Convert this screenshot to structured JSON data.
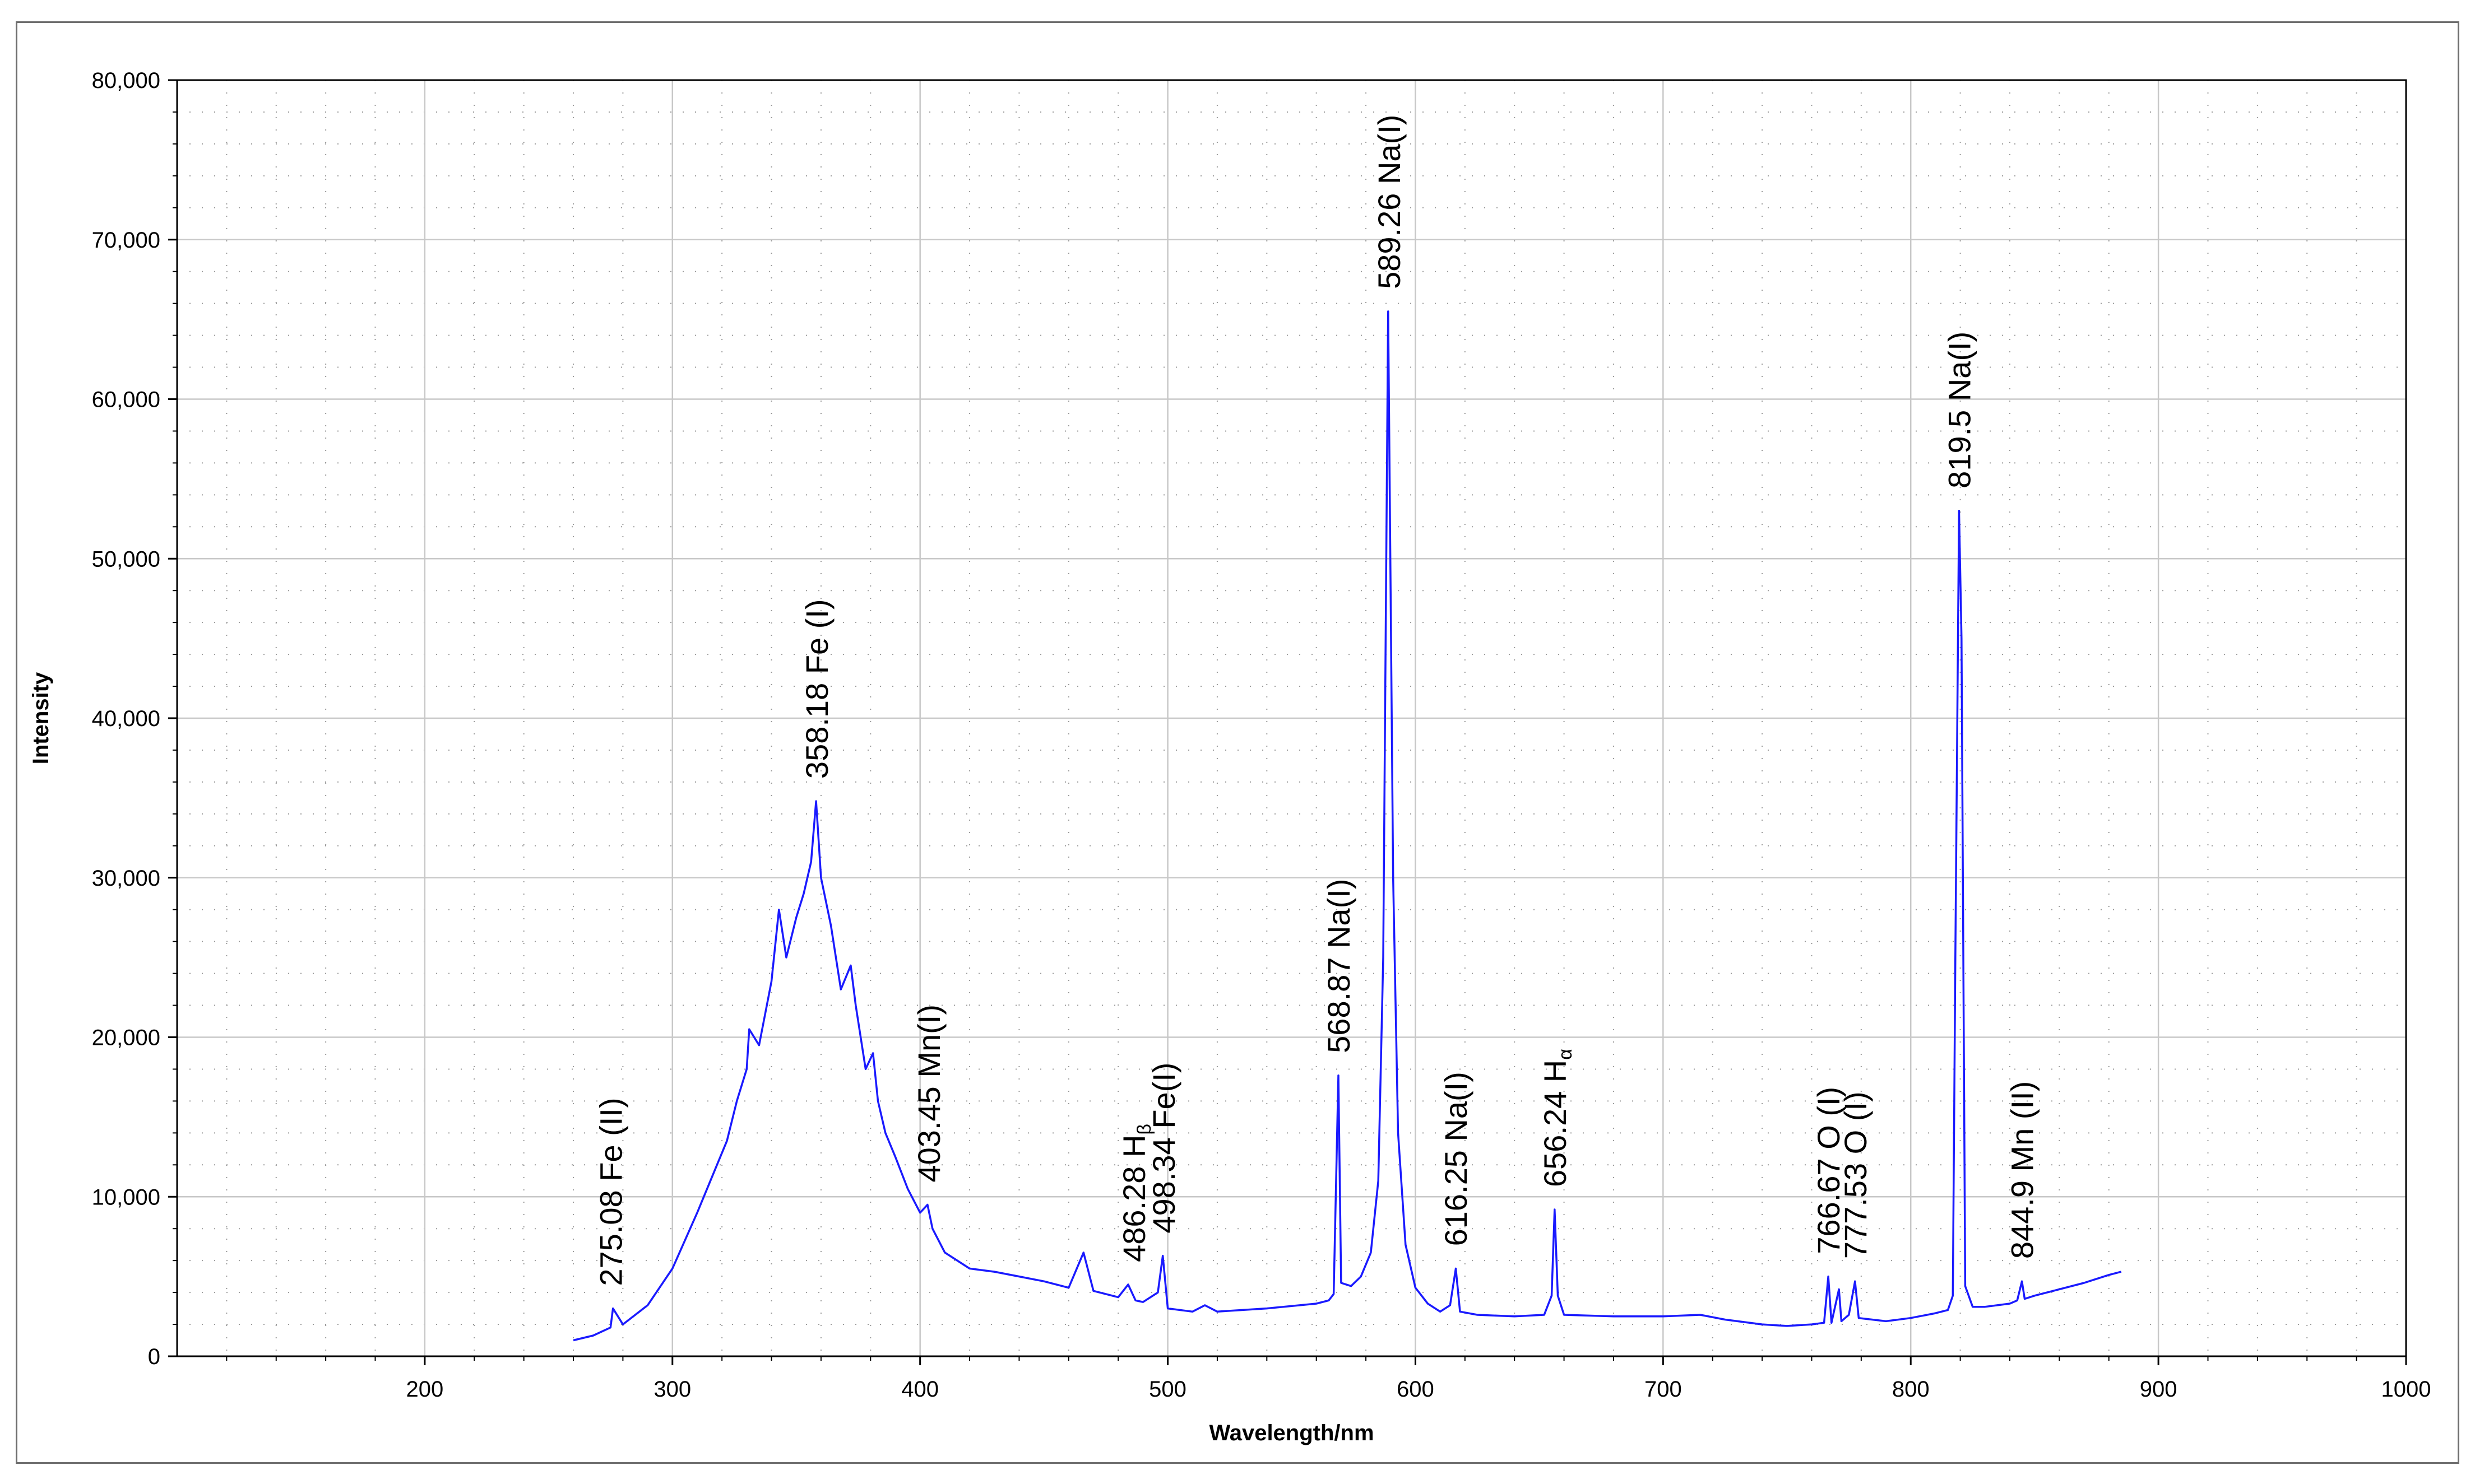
{
  "chart_data": {
    "type": "line",
    "title": "",
    "xlabel": "Wavelength/nm",
    "ylabel": "Intensity",
    "xlim": [
      100,
      1000
    ],
    "ylim": [
      0,
      80000
    ],
    "x_ticks": [
      "200",
      "300",
      "400",
      "500",
      "600",
      "700",
      "800",
      "900",
      "1000"
    ],
    "y_ticks": [
      "0",
      "10,000",
      "20,000",
      "30,000",
      "40,000",
      "50,000",
      "60,000",
      "70,000",
      "80,000"
    ],
    "grid": true,
    "line_color": "#1a1aff",
    "series": [
      {
        "x": [
          260,
          268,
          275,
          276,
          280,
          290,
          300,
          310,
          318,
          322,
          326,
          330,
          331,
          335,
          340,
          343,
          346,
          350,
          353,
          356,
          358,
          360,
          364,
          368,
          372,
          374,
          378,
          381,
          383,
          386,
          390,
          395,
          400,
          403,
          405,
          410,
          420,
          430,
          440,
          450,
          460,
          466,
          470,
          480,
          484,
          487,
          490,
          496,
          498,
          500,
          510,
          515,
          520,
          540,
          560,
          565,
          567,
          568.9,
          570,
          574,
          578,
          582,
          585,
          587,
          589,
          591,
          593,
          596,
          600,
          605,
          610,
          614,
          616.3,
          618,
          625,
          640,
          652,
          655,
          656.2,
          657.5,
          660,
          680,
          700,
          715,
          725,
          740,
          750,
          760,
          765,
          766.7,
          768,
          771,
          772,
          775,
          777.5,
          779,
          790,
          800,
          810,
          815,
          817,
          818,
          819.5,
          820.5,
          822,
          825,
          830,
          840,
          843,
          844.9,
          846,
          850,
          860,
          870,
          880,
          885
        ],
        "y": [
          1000,
          1300,
          1800,
          3000,
          2000,
          3200,
          5500,
          9000,
          12000,
          13500,
          16000,
          18000,
          20500,
          19500,
          23500,
          28000,
          25000,
          27500,
          29000,
          31000,
          34800,
          30000,
          27000,
          23000,
          24500,
          22000,
          18000,
          19000,
          16000,
          14000,
          12500,
          10500,
          9000,
          9500,
          8000,
          6500,
          5500,
          5300,
          5000,
          4700,
          4300,
          6500,
          4100,
          3700,
          4500,
          3500,
          3400,
          4000,
          6300,
          3000,
          2800,
          3200,
          2800,
          3000,
          3300,
          3500,
          3900,
          17600,
          4600,
          4400,
          5000,
          6500,
          11000,
          25000,
          65500,
          30000,
          14000,
          7000,
          4300,
          3300,
          2800,
          3200,
          5500,
          2800,
          2600,
          2500,
          2600,
          3800,
          9200,
          3800,
          2600,
          2500,
          2500,
          2600,
          2300,
          2000,
          1900,
          2000,
          2100,
          5000,
          2100,
          4200,
          2200,
          2600,
          4700,
          2400,
          2200,
          2400,
          2700,
          2900,
          3800,
          25000,
          53000,
          45000,
          4400,
          3100,
          3100,
          3300,
          3500,
          4700,
          3600,
          3800,
          4200,
          4600,
          5100,
          5300
        ]
      }
    ],
    "annotations": [
      {
        "x": 275.08,
        "label": "275.08 Fe (II)"
      },
      {
        "x": 358.18,
        "label": "358.18 Fe (I)"
      },
      {
        "x": 403.45,
        "label": "403.45 Mn(I)"
      },
      {
        "x": 486.28,
        "label": "486.28 H",
        "sub": "β"
      },
      {
        "x": 498.34,
        "label": "498.34 Fe(I)"
      },
      {
        "x": 568.87,
        "label": "568.87 Na(I)"
      },
      {
        "x": 589.26,
        "label": "589.26 Na(I)"
      },
      {
        "x": 616.25,
        "label": "616.25 Na(I)"
      },
      {
        "x": 656.24,
        "label": "656.24 H",
        "sub": "α"
      },
      {
        "x": 766.67,
        "label": "766.67 O (I)"
      },
      {
        "x": 777.53,
        "label": "777.53 O (I)"
      },
      {
        "x": 819.5,
        "label": "819.5 Na(I)"
      },
      {
        "x": 844.9,
        "label": "844.9 Mn (II)"
      }
    ]
  }
}
